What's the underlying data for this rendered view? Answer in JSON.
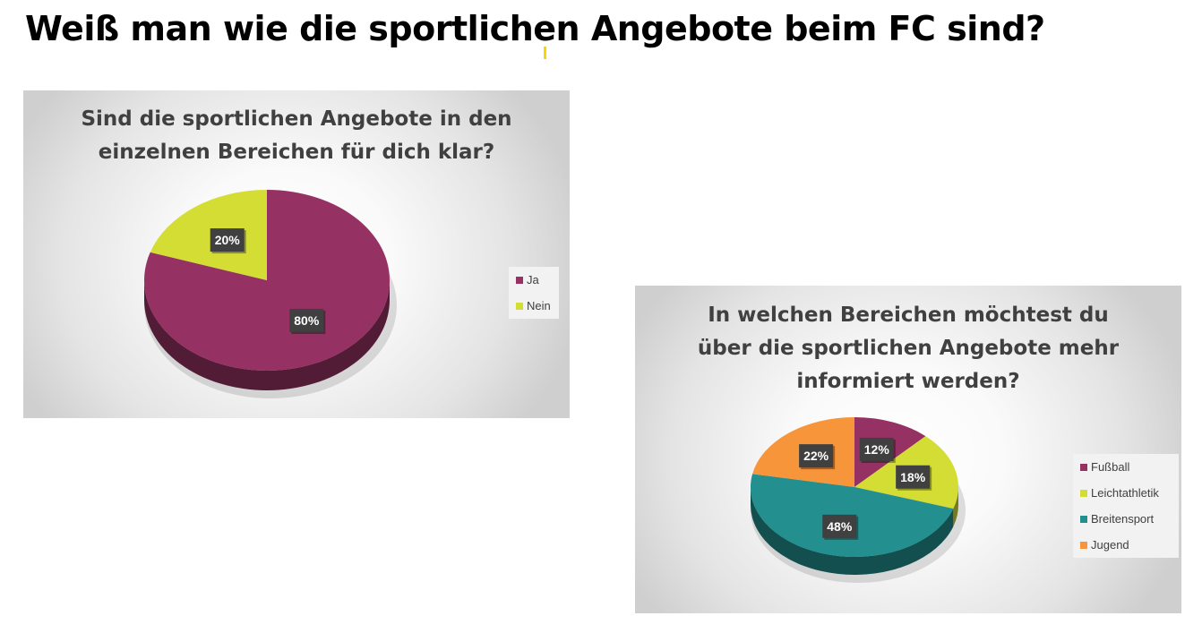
{
  "page": {
    "title": "Weiß man wie die sportlichen Angebote beim FC sind?"
  },
  "chart_data": [
    {
      "type": "pie",
      "title": "Sind die sportlichen Angebote in den einzelnen Bereichen für dich klar?",
      "title_lines": [
        "Sind die sportlichen Angebote in den",
        "einzelnen Bereichen für dich klar?"
      ],
      "categories": [
        "Ja",
        "Nein"
      ],
      "values": [
        80,
        20
      ],
      "labels": [
        "80%",
        "20%"
      ],
      "colors": [
        "#953163",
        "#d4dd34"
      ],
      "legend_position": "right",
      "style": "3d"
    },
    {
      "type": "pie",
      "title": "In welchen Bereichen möchtest du über die sportlichen Angebote mehr informiert werden?",
      "title_lines": [
        "In welchen Bereichen möchtest du",
        "über die sportlichen Angebote mehr",
        "informiert werden?"
      ],
      "categories": [
        "Fußball",
        "Leichtathletik",
        "Breitensport",
        "Jugend"
      ],
      "values": [
        12,
        18,
        48,
        22
      ],
      "labels": [
        "12%",
        "18%",
        "48%",
        "22%"
      ],
      "colors": [
        "#953163",
        "#d4dd34",
        "#238f8f",
        "#f7953b"
      ],
      "legend_position": "right",
      "style": "3d"
    }
  ]
}
